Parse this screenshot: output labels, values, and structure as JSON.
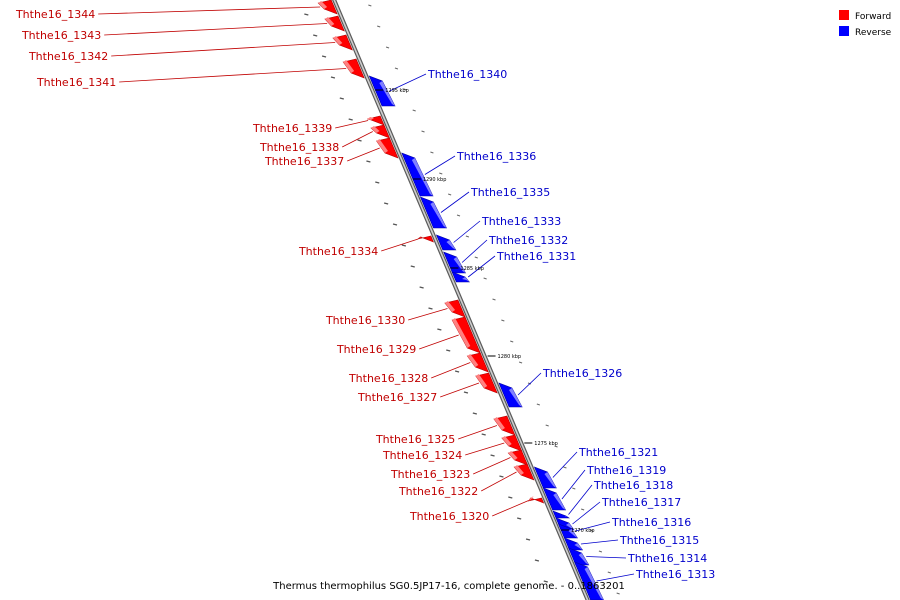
{
  "caption": "Thermus thermophilus SG0.5JP17-16, complete genome. - 0..1863201",
  "legend": [
    {
      "label": "Forward",
      "color": "#ff0000"
    },
    {
      "label": "Reverse",
      "color": "#0000ff"
    }
  ],
  "colors": {
    "forward": "#ff0000",
    "forward_light": "#ff8080",
    "reverse": "#0000ff",
    "reverse_light": "#8080ff",
    "backbone": "#8a8a8a",
    "forward_label": "#c00000",
    "reverse_label": "#0000cc"
  },
  "scale_labels": [
    "1295 kbp",
    "1290 kbp",
    "1285 kbp",
    "1280 kbp",
    "1275 kbp",
    "1270 kbp"
  ],
  "genes": [
    {
      "name": "Ththe16_1344",
      "strand": "forward"
    },
    {
      "name": "Ththe16_1343",
      "strand": "forward"
    },
    {
      "name": "Ththe16_1342",
      "strand": "forward"
    },
    {
      "name": "Ththe16_1341",
      "strand": "forward"
    },
    {
      "name": "Ththe16_1340",
      "strand": "reverse"
    },
    {
      "name": "Ththe16_1339",
      "strand": "forward"
    },
    {
      "name": "Ththe16_1338",
      "strand": "forward"
    },
    {
      "name": "Ththe16_1337",
      "strand": "forward"
    },
    {
      "name": "Ththe16_1336",
      "strand": "reverse"
    },
    {
      "name": "Ththe16_1335",
      "strand": "reverse"
    },
    {
      "name": "Ththe16_1333",
      "strand": "reverse"
    },
    {
      "name": "Ththe16_1334",
      "strand": "forward"
    },
    {
      "name": "Ththe16_1332",
      "strand": "reverse"
    },
    {
      "name": "Ththe16_1331",
      "strand": "reverse"
    },
    {
      "name": "Ththe16_1330",
      "strand": "forward"
    },
    {
      "name": "Ththe16_1329",
      "strand": "forward"
    },
    {
      "name": "Ththe16_1328",
      "strand": "forward"
    },
    {
      "name": "Ththe16_1327",
      "strand": "forward"
    },
    {
      "name": "Ththe16_1326",
      "strand": "reverse"
    },
    {
      "name": "Ththe16_1325",
      "strand": "forward"
    },
    {
      "name": "Ththe16_1324",
      "strand": "forward"
    },
    {
      "name": "Ththe16_1323",
      "strand": "forward"
    },
    {
      "name": "Ththe16_1322",
      "strand": "forward"
    },
    {
      "name": "Ththe16_1321",
      "strand": "reverse"
    },
    {
      "name": "Ththe16_1320",
      "strand": "forward"
    },
    {
      "name": "Ththe16_1319",
      "strand": "reverse"
    },
    {
      "name": "Ththe16_1318",
      "strand": "reverse"
    },
    {
      "name": "Ththe16_1317",
      "strand": "reverse"
    },
    {
      "name": "Ththe16_1316",
      "strand": "reverse"
    },
    {
      "name": "Ththe16_1315",
      "strand": "reverse"
    },
    {
      "name": "Ththe16_1314",
      "strand": "reverse"
    },
    {
      "name": "Ththe16_1313",
      "strand": "reverse"
    }
  ]
}
